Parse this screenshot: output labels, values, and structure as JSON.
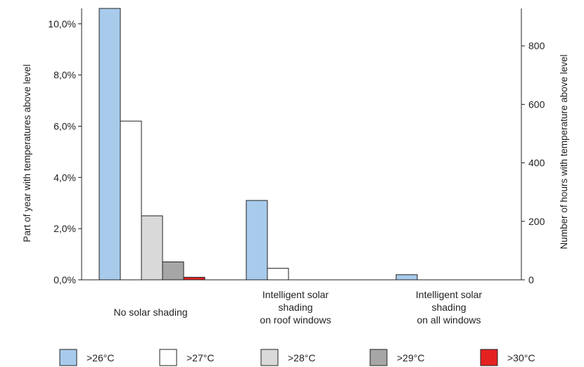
{
  "chart_data": {
    "type": "bar",
    "categories": [
      [
        "No solar shading"
      ],
      [
        "Intelligent solar",
        "shading",
        "on roof windows"
      ],
      [
        "Intelligent solar",
        "shading",
        "on all windows"
      ]
    ],
    "series": [
      {
        "name": ">26°C",
        "color": "#a8cbec",
        "values": [
          10.6,
          3.1,
          0.2
        ]
      },
      {
        "name": ">27°C",
        "color": "#ffffff",
        "values": [
          6.2,
          0.45,
          0
        ]
      },
      {
        "name": ">28°C",
        "color": "#d9d9d9",
        "values": [
          2.5,
          0,
          0
        ]
      },
      {
        "name": ">29°C",
        "color": "#a6a6a6",
        "values": [
          0.7,
          0,
          0
        ]
      },
      {
        "name": ">30°C",
        "color": "#e52222",
        "values": [
          0.1,
          0,
          0
        ]
      }
    ],
    "ylabel": "Part of year with temperatures above level",
    "ylabel_right": "Number of hours with temperature above level",
    "ylim": [
      0,
      10.6
    ],
    "yticks": [
      "0,0%",
      "2,0%",
      "4,0%",
      "6,0%",
      "8,0%",
      "10,0%"
    ],
    "yticks_values": [
      0,
      2,
      4,
      6,
      8,
      10
    ],
    "y2lim": [
      0,
      928
    ],
    "y2ticks": [
      "0",
      "200",
      "400",
      "600",
      "800"
    ],
    "y2ticks_values": [
      0,
      200,
      400,
      600,
      800
    ],
    "legend_position": "bottom",
    "grid": false
  }
}
